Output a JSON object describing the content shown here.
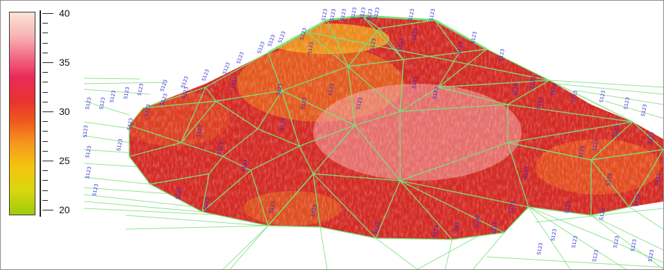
{
  "colors": {
    "mesh": "#7be07b",
    "label_text": "#2a2ad8",
    "surface_base": "#d42a24"
  },
  "colorbar": {
    "ticks": [
      "40",
      "35",
      "30",
      "25",
      "20"
    ],
    "gradient_colors": [
      "#fce4d6",
      "#f26b86",
      "#e8332e",
      "#f7931e",
      "#9fcc0b"
    ]
  },
  "well_label_text": "S123"
}
